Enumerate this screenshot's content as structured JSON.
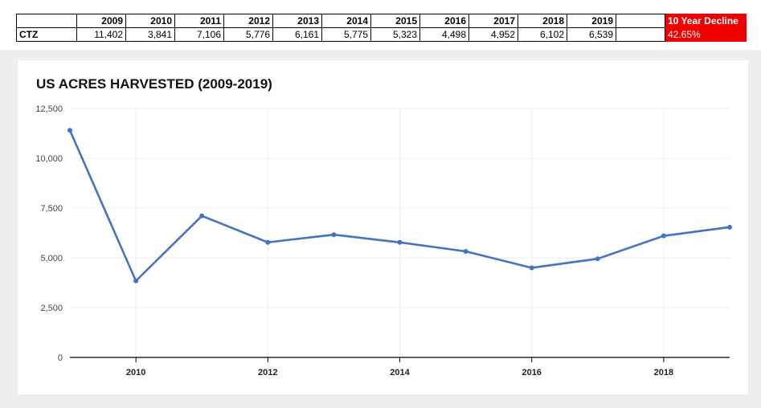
{
  "table": {
    "header": {
      "label": "",
      "years": [
        "2009",
        "2010",
        "2011",
        "2012",
        "2013",
        "2014",
        "2015",
        "2016",
        "2017",
        "2018",
        "2019"
      ],
      "blank": "",
      "decline_label": "10 Year Decline"
    },
    "row": {
      "label": "CTZ",
      "values": [
        "11,402",
        "3,841",
        "7,106",
        "5,776",
        "6,161",
        "5,775",
        "5,323",
        "4,498",
        "4,952",
        "6,102",
        "6,539"
      ],
      "blank": "",
      "decline_value": "42.65%"
    },
    "decline_color": "#f00000"
  },
  "chart_data": {
    "type": "line",
    "title": "US ACRES HARVESTED (2009-2019)",
    "xlabel": "",
    "ylabel": "",
    "x": [
      2009,
      2010,
      2011,
      2012,
      2013,
      2014,
      2015,
      2016,
      2017,
      2018,
      2019
    ],
    "series": [
      {
        "values": [
          11402,
          3841,
          7106,
          5776,
          6161,
          5775,
          5323,
          4498,
          4952,
          6102,
          6539
        ],
        "color": "#4472c4"
      }
    ],
    "xlim": [
      2009,
      2019
    ],
    "ylim": [
      0,
      12500
    ],
    "x_ticks": [
      2010,
      2012,
      2014,
      2016,
      2018
    ],
    "x_tick_labels": [
      "2010",
      "2012",
      "2014",
      "2016",
      "2018"
    ],
    "y_ticks": [
      0,
      2500,
      5000,
      7500,
      10000,
      12500
    ],
    "y_tick_labels": [
      "0",
      "2,500",
      "5,000",
      "7,500",
      "10,000",
      "12,500"
    ],
    "grid": true,
    "legend": "none"
  }
}
